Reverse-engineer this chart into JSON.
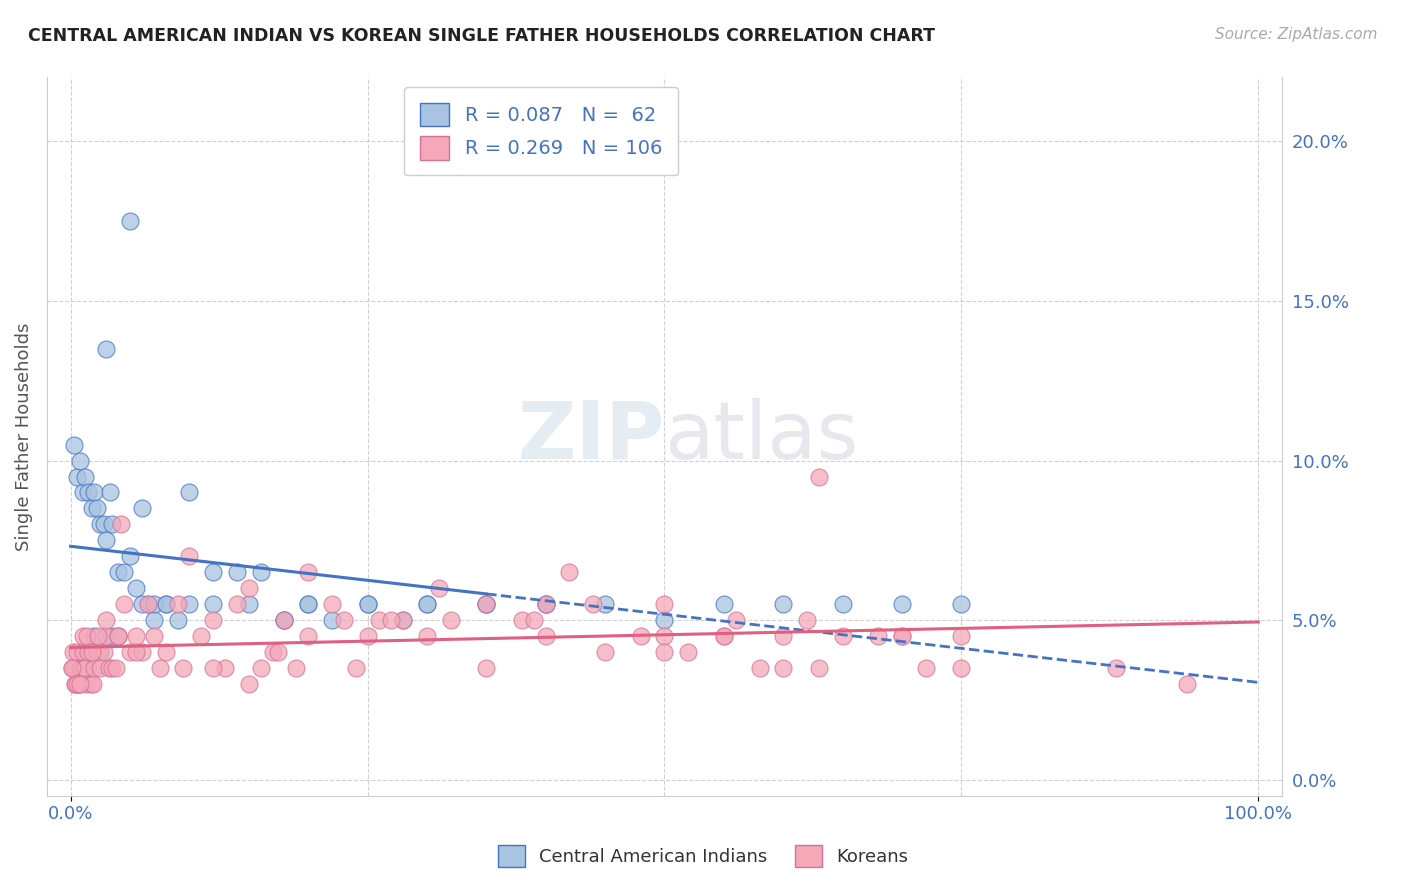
{
  "title": "CENTRAL AMERICAN INDIAN VS KOREAN SINGLE FATHER HOUSEHOLDS CORRELATION CHART",
  "source": "Source: ZipAtlas.com",
  "ylabel": "Single Father Households",
  "R_blue": 0.087,
  "N_blue": 62,
  "R_pink": 0.269,
  "N_pink": 106,
  "legend_labels": [
    "Central American Indians",
    "Koreans"
  ],
  "blue_color": "#a8c4e0",
  "pink_color": "#f4a8b8",
  "blue_line_color": "#4472c4",
  "pink_line_color": "#e06080",
  "accent_color": "#4472c4",
  "watermark": "ZIPatlas",
  "blue_x": [
    0.3,
    0.5,
    0.8,
    1.0,
    1.2,
    1.5,
    1.8,
    2.0,
    2.2,
    2.5,
    2.8,
    3.0,
    3.3,
    3.5,
    4.0,
    4.5,
    5.0,
    5.5,
    6.0,
    6.5,
    7.0,
    8.0,
    9.0,
    10.0,
    12.0,
    14.0,
    16.0,
    18.0,
    20.0,
    22.0,
    25.0,
    28.0,
    30.0,
    35.0,
    40.0,
    1.0,
    1.5,
    2.0,
    2.5,
    3.0,
    3.5,
    4.0,
    5.0,
    6.0,
    7.0,
    8.0,
    10.0,
    12.0,
    15.0,
    18.0,
    20.0,
    25.0,
    30.0,
    35.0,
    40.0,
    45.0,
    50.0,
    55.0,
    60.0,
    65.0,
    70.0,
    75.0
  ],
  "blue_y": [
    10.5,
    9.5,
    10.0,
    9.0,
    9.5,
    9.0,
    8.5,
    9.0,
    8.5,
    8.0,
    8.0,
    7.5,
    9.0,
    8.0,
    6.5,
    6.5,
    7.0,
    6.0,
    8.5,
    5.5,
    5.0,
    5.5,
    5.0,
    9.0,
    6.5,
    6.5,
    6.5,
    5.0,
    5.5,
    5.0,
    5.5,
    5.0,
    5.5,
    5.5,
    5.5,
    4.0,
    3.5,
    4.5,
    4.0,
    13.5,
    4.5,
    4.5,
    17.5,
    5.5,
    5.5,
    5.5,
    5.5,
    5.5,
    5.5,
    5.0,
    5.5,
    5.5,
    5.5,
    5.5,
    5.5,
    5.5,
    5.0,
    5.5,
    5.5,
    5.5,
    5.5,
    5.5
  ],
  "pink_x": [
    0.1,
    0.2,
    0.3,
    0.4,
    0.5,
    0.6,
    0.7,
    0.8,
    0.9,
    1.0,
    1.1,
    1.2,
    1.3,
    1.5,
    1.7,
    1.9,
    2.0,
    2.2,
    2.5,
    2.8,
    3.0,
    3.2,
    3.5,
    3.8,
    4.0,
    4.2,
    4.5,
    5.0,
    5.5,
    6.0,
    6.5,
    7.0,
    8.0,
    9.0,
    10.0,
    11.0,
    12.0,
    13.0,
    14.0,
    15.0,
    16.0,
    17.0,
    18.0,
    19.0,
    20.0,
    22.0,
    24.0,
    26.0,
    28.0,
    30.0,
    32.0,
    35.0,
    38.0,
    40.0,
    42.0,
    45.0,
    48.0,
    50.0,
    52.0,
    55.0,
    58.0,
    60.0,
    63.0,
    65.0,
    68.0,
    70.0,
    72.0,
    75.0,
    0.15,
    0.35,
    0.55,
    0.75,
    1.0,
    1.4,
    1.8,
    2.3,
    3.0,
    4.0,
    5.5,
    7.5,
    9.5,
    12.0,
    15.0,
    17.5,
    20.0,
    23.0,
    27.0,
    31.0,
    35.0,
    39.0,
    44.0,
    50.0,
    56.0,
    62.0,
    55.0,
    63.0,
    88.0,
    94.0,
    25.0,
    40.0,
    50.0,
    60.0,
    70.0,
    75.0
  ],
  "pink_y": [
    3.5,
    4.0,
    3.5,
    3.0,
    4.0,
    3.0,
    3.0,
    3.5,
    3.5,
    4.0,
    3.5,
    3.5,
    3.0,
    4.0,
    3.0,
    3.0,
    3.5,
    4.0,
    3.5,
    4.0,
    4.5,
    3.5,
    3.5,
    3.5,
    4.5,
    8.0,
    5.5,
    4.0,
    4.5,
    4.0,
    5.5,
    4.5,
    4.0,
    5.5,
    7.0,
    4.5,
    5.0,
    3.5,
    5.5,
    6.0,
    3.5,
    4.0,
    5.0,
    3.5,
    6.5,
    5.5,
    3.5,
    5.0,
    5.0,
    4.5,
    5.0,
    3.5,
    5.0,
    5.5,
    6.5,
    4.0,
    4.5,
    4.5,
    4.0,
    4.5,
    3.5,
    4.5,
    3.5,
    4.5,
    4.5,
    4.5,
    3.5,
    3.5,
    3.5,
    3.0,
    3.0,
    3.0,
    4.5,
    4.5,
    4.0,
    4.5,
    5.0,
    4.5,
    4.0,
    3.5,
    3.5,
    3.5,
    3.0,
    4.0,
    4.5,
    5.0,
    5.0,
    6.0,
    5.5,
    5.0,
    5.5,
    5.5,
    5.0,
    5.0,
    4.5,
    9.5,
    3.5,
    3.0,
    4.5,
    4.5,
    4.0,
    3.5,
    4.5,
    4.5,
    4.5,
    3.5
  ],
  "xlim": [
    -2,
    102
  ],
  "ylim": [
    -0.5,
    22
  ],
  "yticks": [
    0,
    5,
    10,
    15,
    20
  ],
  "ytick_labels": [
    "0.0%",
    "5.0%",
    "10.0%",
    "15.0%",
    "20.0%"
  ],
  "xtick_labels": [
    "0.0%",
    "100.0%"
  ],
  "grid_color": "#cccccc",
  "bg_color": "#ffffff"
}
